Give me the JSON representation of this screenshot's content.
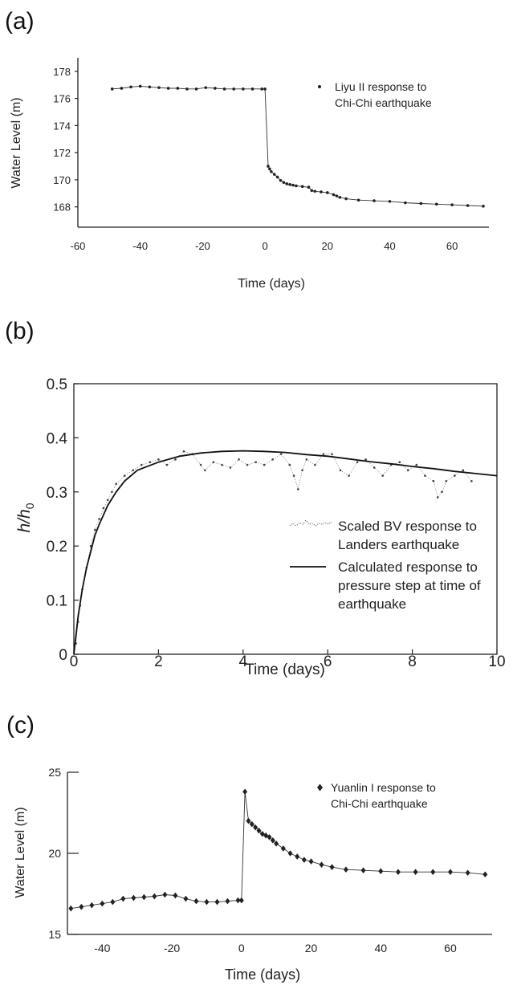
{
  "chart_data": [
    {
      "panel_label": "(a)",
      "type": "line",
      "marker": "dot",
      "xlabel": "Time (days)",
      "ylabel": "Water Level (m)",
      "xlim": [
        -60,
        70
      ],
      "ylim": [
        166.5,
        179
      ],
      "xticks": [
        -60,
        -40,
        -20,
        0,
        20,
        40,
        60
      ],
      "yticks": [
        168,
        170,
        172,
        174,
        176,
        178
      ],
      "grid": false,
      "legend": {
        "position": "top-right",
        "label_lines": [
          "Liyu II response to",
          "Chi-Chi earthquake"
        ]
      },
      "series": [
        {
          "x": [
            -49,
            -46,
            -43,
            -40,
            -37,
            -34,
            -31,
            -28,
            -25,
            -22,
            -19,
            -16,
            -13,
            -10,
            -7,
            -4,
            -1,
            0,
            1,
            1.5,
            2,
            3,
            4,
            5,
            6,
            7,
            8,
            9,
            10,
            12,
            14,
            15,
            16,
            18,
            20,
            22,
            23,
            24,
            26,
            30,
            35,
            40,
            45,
            50,
            55,
            60,
            65,
            70
          ],
          "y": [
            176.7,
            176.75,
            176.85,
            176.9,
            176.85,
            176.8,
            176.75,
            176.75,
            176.7,
            176.7,
            176.8,
            176.75,
            176.7,
            176.7,
            176.7,
            176.7,
            176.7,
            176.7,
            171.0,
            170.8,
            170.6,
            170.4,
            170.2,
            169.95,
            169.8,
            169.7,
            169.65,
            169.6,
            169.55,
            169.5,
            169.45,
            169.2,
            169.15,
            169.1,
            169.05,
            168.9,
            168.8,
            168.7,
            168.6,
            168.5,
            168.45,
            168.4,
            168.3,
            168.25,
            168.2,
            168.15,
            168.1,
            168.05
          ]
        }
      ]
    },
    {
      "panel_label": "(b)",
      "type": "line",
      "xlabel": "Time (days)",
      "ylabel_main": "h/h",
      "ylabel_sub": "0",
      "xlim": [
        0,
        10
      ],
      "ylim": [
        0,
        0.5
      ],
      "xticks": [
        0,
        2,
        4,
        6,
        8,
        10
      ],
      "yticks": [
        0,
        0.1,
        0.2,
        0.3,
        0.4,
        0.5
      ],
      "grid": false,
      "legend": {
        "position": "bottom-right",
        "entries": [
          {
            "label_lines": [
              "Scaled BV response to",
              "Landers earthquake"
            ]
          },
          {
            "label_lines": [
              "Calculated response to",
              "pressure step at time of",
              "earthquake"
            ]
          }
        ]
      },
      "series": [
        {
          "style": "dotted",
          "x": [
            0.05,
            0.1,
            0.15,
            0.2,
            0.3,
            0.4,
            0.5,
            0.6,
            0.7,
            0.8,
            0.9,
            1.0,
            1.2,
            1.4,
            1.6,
            1.8,
            2.0,
            2.2,
            2.4,
            2.6,
            2.8,
            3.0,
            3.1,
            3.3,
            3.5,
            3.7,
            3.9,
            4.1,
            4.3,
            4.5,
            4.7,
            4.9,
            5.1,
            5.2,
            5.3,
            5.4,
            5.5,
            5.7,
            5.9,
            6.1,
            6.3,
            6.5,
            6.7,
            6.9,
            7.1,
            7.3,
            7.5,
            7.7,
            7.9,
            8.1,
            8.3,
            8.5,
            8.6,
            8.7,
            8.8,
            9.0,
            9.2,
            9.4
          ],
          "y": [
            0.02,
            0.06,
            0.09,
            0.12,
            0.16,
            0.2,
            0.23,
            0.25,
            0.27,
            0.285,
            0.3,
            0.315,
            0.33,
            0.34,
            0.35,
            0.355,
            0.36,
            0.35,
            0.36,
            0.375,
            0.37,
            0.35,
            0.34,
            0.355,
            0.35,
            0.345,
            0.36,
            0.35,
            0.355,
            0.35,
            0.36,
            0.37,
            0.35,
            0.33,
            0.305,
            0.34,
            0.36,
            0.35,
            0.37,
            0.37,
            0.34,
            0.33,
            0.355,
            0.36,
            0.345,
            0.33,
            0.35,
            0.355,
            0.34,
            0.35,
            0.33,
            0.32,
            0.29,
            0.3,
            0.32,
            0.33,
            0.34,
            0.32
          ]
        },
        {
          "style": "solid",
          "x": [
            0,
            0.1,
            0.2,
            0.3,
            0.4,
            0.5,
            0.6,
            0.8,
            1.0,
            1.2,
            1.5,
            2.0,
            2.5,
            3.0,
            3.5,
            4.0,
            4.5,
            5.0,
            5.5,
            6.0,
            6.5,
            7.0,
            7.5,
            8.0,
            8.5,
            9.0,
            9.5,
            10.0
          ],
          "y": [
            0.0,
            0.07,
            0.12,
            0.16,
            0.19,
            0.22,
            0.24,
            0.275,
            0.3,
            0.32,
            0.34,
            0.355,
            0.366,
            0.372,
            0.375,
            0.376,
            0.375,
            0.373,
            0.369,
            0.366,
            0.361,
            0.356,
            0.352,
            0.347,
            0.343,
            0.338,
            0.334,
            0.33
          ]
        }
      ]
    },
    {
      "panel_label": "(c)",
      "type": "line",
      "marker": "diamond",
      "xlabel": "Time (days)",
      "ylabel": "Water Level (m)",
      "xlim": [
        -50,
        72
      ],
      "ylim": [
        15,
        25
      ],
      "xticks": [
        -40,
        -20,
        0,
        20,
        40,
        60
      ],
      "yticks": [
        15,
        20,
        25
      ],
      "grid": false,
      "legend": {
        "position": "top-right",
        "label_lines": [
          "Yuanlin I response to",
          "Chi-Chi earthquake"
        ]
      },
      "series": [
        {
          "x": [
            -49,
            -46,
            -43,
            -40,
            -37,
            -34,
            -31,
            -28,
            -25,
            -22,
            -19,
            -16,
            -13,
            -10,
            -7,
            -4,
            -1,
            0,
            1,
            2,
            3,
            4,
            5,
            6,
            7,
            8,
            9,
            10,
            12,
            14,
            16,
            18,
            20,
            23,
            26,
            30,
            35,
            40,
            45,
            50,
            55,
            60,
            65,
            70
          ],
          "y": [
            16.6,
            16.7,
            16.8,
            16.9,
            17.0,
            17.2,
            17.25,
            17.3,
            17.35,
            17.45,
            17.4,
            17.2,
            17.05,
            17.0,
            17.0,
            17.05,
            17.1,
            17.1,
            23.8,
            22.0,
            21.8,
            21.6,
            21.4,
            21.2,
            21.1,
            21.0,
            20.8,
            20.6,
            20.3,
            20.0,
            19.8,
            19.6,
            19.5,
            19.3,
            19.15,
            19.0,
            18.95,
            18.9,
            18.85,
            18.85,
            18.85,
            18.85,
            18.8,
            18.7
          ]
        }
      ]
    }
  ]
}
